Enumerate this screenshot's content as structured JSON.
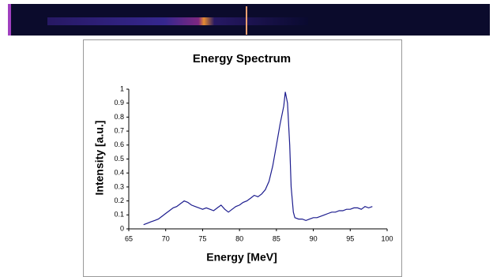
{
  "chart_data": {
    "type": "line",
    "title": "Energy Spectrum",
    "x_label": "Energy [MeV]",
    "y_label": "Intensity [a.u.]",
    "x": [
      67,
      67.5,
      68,
      68.5,
      69,
      69.5,
      70,
      70.5,
      71,
      71.5,
      72,
      72.5,
      73,
      73.5,
      74,
      74.5,
      75,
      75.5,
      76,
      76.5,
      77,
      77.5,
      78,
      78.5,
      79,
      79.5,
      80,
      80.5,
      81,
      81.5,
      82,
      82.5,
      83,
      83.5,
      84,
      84.5,
      85,
      85.5,
      86,
      86.2,
      86.5,
      86.8,
      87,
      87.3,
      87.5,
      88,
      88.5,
      89,
      89.5,
      90,
      90.5,
      91,
      91.5,
      92,
      92.5,
      93,
      93.5,
      94,
      94.5,
      95,
      95.5,
      96,
      96.5,
      97,
      97.5,
      98
    ],
    "values": [
      0.03,
      0.04,
      0.05,
      0.06,
      0.07,
      0.09,
      0.11,
      0.13,
      0.15,
      0.16,
      0.18,
      0.2,
      0.19,
      0.17,
      0.16,
      0.15,
      0.14,
      0.15,
      0.14,
      0.13,
      0.15,
      0.17,
      0.14,
      0.12,
      0.14,
      0.16,
      0.17,
      0.19,
      0.2,
      0.22,
      0.24,
      0.23,
      0.25,
      0.28,
      0.34,
      0.45,
      0.6,
      0.75,
      0.88,
      0.98,
      0.9,
      0.6,
      0.3,
      0.12,
      0.08,
      0.07,
      0.07,
      0.06,
      0.07,
      0.08,
      0.08,
      0.09,
      0.1,
      0.11,
      0.12,
      0.12,
      0.13,
      0.13,
      0.14,
      0.14,
      0.15,
      0.15,
      0.14,
      0.16,
      0.15,
      0.16
    ],
    "color": "#1c1c8e",
    "xlim": [
      65,
      100
    ],
    "xticks": [
      65,
      70,
      75,
      80,
      85,
      90,
      95,
      100
    ],
    "ylim": [
      0,
      1
    ],
    "yticks": [
      0,
      0.1,
      0.2,
      0.3,
      0.4,
      0.5,
      0.6,
      0.7,
      0.8,
      0.9,
      1
    ]
  }
}
